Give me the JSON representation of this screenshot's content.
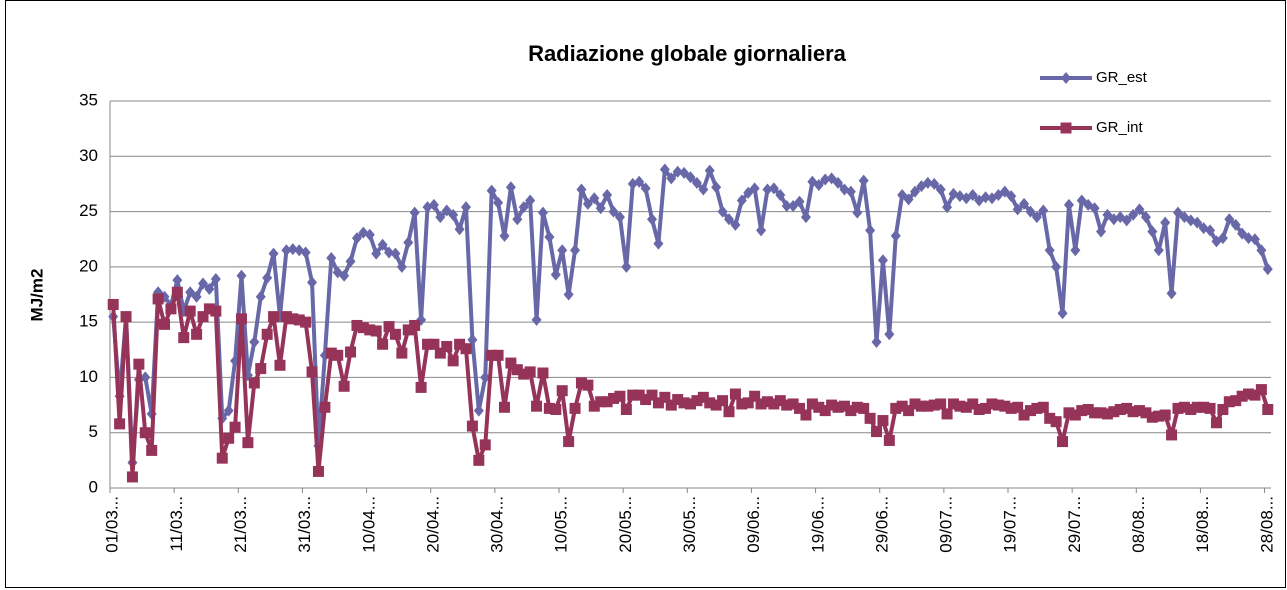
{
  "chart_data": {
    "type": "line",
    "title": "Radiazione globale giornaliera",
    "y_label": "MJ/m2",
    "categories": [
      "01/03...",
      null,
      null,
      null,
      null,
      null,
      null,
      null,
      null,
      null,
      "11/03...",
      null,
      null,
      null,
      null,
      null,
      null,
      null,
      null,
      null,
      "21/03...",
      null,
      null,
      null,
      null,
      null,
      null,
      null,
      null,
      null,
      "31/03...",
      null,
      null,
      null,
      null,
      null,
      null,
      null,
      null,
      null,
      "10/04...",
      null,
      null,
      null,
      null,
      null,
      null,
      null,
      null,
      null,
      "20/04...",
      null,
      null,
      null,
      null,
      null,
      null,
      null,
      null,
      null,
      "30/04...",
      null,
      null,
      null,
      null,
      null,
      null,
      null,
      null,
      null,
      "10/05...",
      null,
      null,
      null,
      null,
      null,
      null,
      null,
      null,
      null,
      "20/05...",
      null,
      null,
      null,
      null,
      null,
      null,
      null,
      null,
      null,
      "30/05...",
      null,
      null,
      null,
      null,
      null,
      null,
      null,
      null,
      null,
      "09/06...",
      null,
      null,
      null,
      null,
      null,
      null,
      null,
      null,
      null,
      "19/06...",
      null,
      null,
      null,
      null,
      null,
      null,
      null,
      null,
      null,
      "29/06...",
      null,
      null,
      null,
      null,
      null,
      null,
      null,
      null,
      null,
      "09/07...",
      null,
      null,
      null,
      null,
      null,
      null,
      null,
      null,
      null,
      "19/07...",
      null,
      null,
      null,
      null,
      null,
      null,
      null,
      null,
      null,
      "29/07...",
      null,
      null,
      null,
      null,
      null,
      null,
      null,
      null,
      null,
      "08/08...",
      null,
      null,
      null,
      null,
      null,
      null,
      null,
      null,
      null,
      "18/08...",
      null,
      null,
      null,
      null,
      null,
      null,
      null,
      null,
      null,
      "28/08..."
    ],
    "series": [
      {
        "name": "GR_est",
        "color": "#6868a8",
        "marker": "diamond",
        "values": [
          15.5,
          8.3,
          15.5,
          2.3,
          9.8,
          10.0,
          6.7,
          17.7,
          17.3,
          16.5,
          18.8,
          16.0,
          17.7,
          17.3,
          18.5,
          18.0,
          18.9,
          6.3,
          7.0,
          11.5,
          19.2,
          10.2,
          13.2,
          17.3,
          19.0,
          21.2,
          15.5,
          21.5,
          21.6,
          21.5,
          21.3,
          18.6,
          3.8,
          12.0,
          20.8,
          19.5,
          19.2,
          20.5,
          22.6,
          23.1,
          22.9,
          21.2,
          22.0,
          21.3,
          21.2,
          20.0,
          22.2,
          24.9,
          15.2,
          25.4,
          25.6,
          24.5,
          25.1,
          24.7,
          23.4,
          25.4,
          13.4,
          7.0,
          10.0,
          26.9,
          25.8,
          22.8,
          27.2,
          24.3,
          25.4,
          26.0,
          15.2,
          24.9,
          22.7,
          19.3,
          21.5,
          17.5,
          21.5,
          27.0,
          25.7,
          26.2,
          25.3,
          26.5,
          25.0,
          24.5,
          20.0,
          27.5,
          27.7,
          27.1,
          24.3,
          22.1,
          28.8,
          28.0,
          28.6,
          28.5,
          28.1,
          27.6,
          27.0,
          28.7,
          27.2,
          25.0,
          24.3,
          23.8,
          26.0,
          26.7,
          27.1,
          23.3,
          27.0,
          27.1,
          26.5,
          25.5,
          25.5,
          25.9,
          24.5,
          27.7,
          27.4,
          27.9,
          28.0,
          27.6,
          27.0,
          26.8,
          24.9,
          27.8,
          23.3,
          13.2,
          20.6,
          13.9,
          22.8,
          26.5,
          26.1,
          26.8,
          27.3,
          27.6,
          27.5,
          27.0,
          25.4,
          26.6,
          26.4,
          26.2,
          26.5,
          26.0,
          26.3,
          26.2,
          26.5,
          26.8,
          26.4,
          25.2,
          25.7,
          25.0,
          24.5,
          25.1,
          21.5,
          20.0,
          15.8,
          25.6,
          21.5,
          26.0,
          25.6,
          25.3,
          23.2,
          24.7,
          24.3,
          24.5,
          24.2,
          24.7,
          25.2,
          24.5,
          23.2,
          21.5,
          24.0,
          17.6,
          24.9,
          24.5,
          24.2,
          24.0,
          23.5,
          23.3,
          22.3,
          22.6,
          24.3,
          23.8,
          23.0,
          22.6,
          22.5,
          21.5,
          19.8
        ]
      },
      {
        "name": "GR_int",
        "color": "#963358",
        "marker": "square",
        "values": [
          16.6,
          5.8,
          15.5,
          1.0,
          11.2,
          5.0,
          3.4,
          17.1,
          14.8,
          16.2,
          17.7,
          13.6,
          16.0,
          13.9,
          15.5,
          16.2,
          16.0,
          2.7,
          4.5,
          5.5,
          15.3,
          4.1,
          9.5,
          10.8,
          13.9,
          15.5,
          11.1,
          15.5,
          15.3,
          15.2,
          15.0,
          10.5,
          1.5,
          7.3,
          12.2,
          12.0,
          9.2,
          12.3,
          14.7,
          14.5,
          14.3,
          14.2,
          13.0,
          14.6,
          13.9,
          12.2,
          14.3,
          14.7,
          9.1,
          13.0,
          13.0,
          12.2,
          12.8,
          11.5,
          13.0,
          12.6,
          5.6,
          2.5,
          3.9,
          12.0,
          12.0,
          7.3,
          11.3,
          10.7,
          10.3,
          10.5,
          7.4,
          10.4,
          7.2,
          7.1,
          8.8,
          4.2,
          7.2,
          9.5,
          9.3,
          7.4,
          7.8,
          7.8,
          8.1,
          8.3,
          7.1,
          8.4,
          8.4,
          8.0,
          8.4,
          7.7,
          8.2,
          7.5,
          8.0,
          7.7,
          7.6,
          7.9,
          8.2,
          7.7,
          7.5,
          7.9,
          6.9,
          8.5,
          7.6,
          7.7,
          8.3,
          7.6,
          7.8,
          7.6,
          7.9,
          7.5,
          7.6,
          7.2,
          6.6,
          7.6,
          7.3,
          7.0,
          7.5,
          7.3,
          7.4,
          7.0,
          7.3,
          7.2,
          6.3,
          5.1,
          6.1,
          4.3,
          7.2,
          7.4,
          7.0,
          7.6,
          7.4,
          7.4,
          7.5,
          7.6,
          6.7,
          7.6,
          7.4,
          7.3,
          7.6,
          7.1,
          7.2,
          7.6,
          7.5,
          7.4,
          7.2,
          7.3,
          6.6,
          7.0,
          7.2,
          7.3,
          6.3,
          6.0,
          4.2,
          6.8,
          6.6,
          7.0,
          7.1,
          6.8,
          6.8,
          6.7,
          6.9,
          7.1,
          7.2,
          6.9,
          7.0,
          6.8,
          6.4,
          6.5,
          6.6,
          4.8,
          7.2,
          7.3,
          7.1,
          7.3,
          7.3,
          7.2,
          5.9,
          7.1,
          7.8,
          7.9,
          8.3,
          8.5,
          8.4,
          8.9,
          7.1
        ]
      }
    ],
    "ylim": [
      0,
      35
    ],
    "yticks": [
      0,
      5,
      10,
      15,
      20,
      25,
      30,
      35
    ],
    "grid": true,
    "legend": "top-right"
  }
}
